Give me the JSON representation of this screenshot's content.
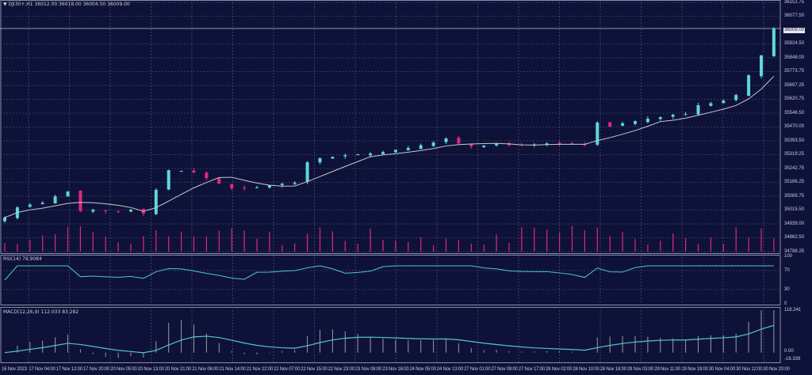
{
  "header": {
    "symbol": "DJI30+,H1",
    "ohlc": "36012.00 36018.00 36004.50 36009.00"
  },
  "price_axis": [
    "36151.75",
    "36077.50",
    "35924.50",
    "35848.00",
    "35773.75",
    "35697.25",
    "35620.75",
    "35546.50",
    "35470.00",
    "35393.50",
    "35319.25",
    "35242.75",
    "35166.25",
    "35089.75",
    "35015.50",
    "34939.00",
    "34862.50",
    "34788.25"
  ],
  "current_price": "36009.00",
  "rsi": {
    "label": "RSI(14) 79.9084",
    "levels": [
      "100",
      "70",
      "30",
      "0"
    ]
  },
  "macd": {
    "label": "MACD(12,26,9) 112.033 83.282",
    "levels": [
      "118.241",
      "0.00",
      "-18.339"
    ]
  },
  "time_axis": [
    "16 Nov 2023",
    "17 Nov 04:00",
    "17 Nov 12:00",
    "17 Nov 20:00",
    "20 Nov 05:00",
    "20 Nov 13:00",
    "20 Nov 21:00",
    "21 Nov 06:00",
    "21 Nov 14:00",
    "21 Nov 22:00",
    "22 Nov 07:00",
    "22 Nov 15:00",
    "22 Nov 23:00",
    "23 Nov 08:00",
    "23 Nov 16:00",
    "24 Nov 05:00",
    "24 Nov 13:00",
    "27 Nov 01:00",
    "27 Nov 09:00",
    "27 Nov 17:00",
    "28 Nov 02:00",
    "28 Nov 10:00",
    "28 Nov 18:00",
    "29 Nov 03:00",
    "29 Nov 11:00",
    "29 Nov 19:00",
    "30 Nov 04:00",
    "30 Nov 12:00",
    "30 Nov 20:00"
  ],
  "colors": {
    "background": "#0f1238",
    "bull": "#5ed8d8",
    "bear": "#e0287a",
    "ma": "#c8c8d0",
    "rsi": "#4fc8c8",
    "grid": "#5a5e80"
  },
  "chart_data": {
    "type": "candlestick",
    "ylim": [
      34788.25,
      36151.75
    ],
    "closes": [
      34974,
      35030,
      35045,
      35055,
      35090,
      35117,
      35010,
      35017,
      35010,
      35005,
      35017,
      34996,
      35126,
      35234,
      35230,
      35221,
      35190,
      35160,
      35134,
      35134,
      35140,
      35150,
      35160,
      35165,
      35277,
      35300,
      35307,
      35315,
      35320,
      35325,
      35333,
      35345,
      35355,
      35370,
      35385,
      35407,
      35380,
      35364,
      35368,
      35377,
      35370,
      35372,
      35375,
      35380,
      35378,
      35377,
      35370,
      35494,
      35472,
      35490,
      35502,
      35515,
      35524,
      35537,
      35540,
      35589,
      35600,
      35615,
      35645,
      35753,
      35862,
      36009
    ]
  }
}
